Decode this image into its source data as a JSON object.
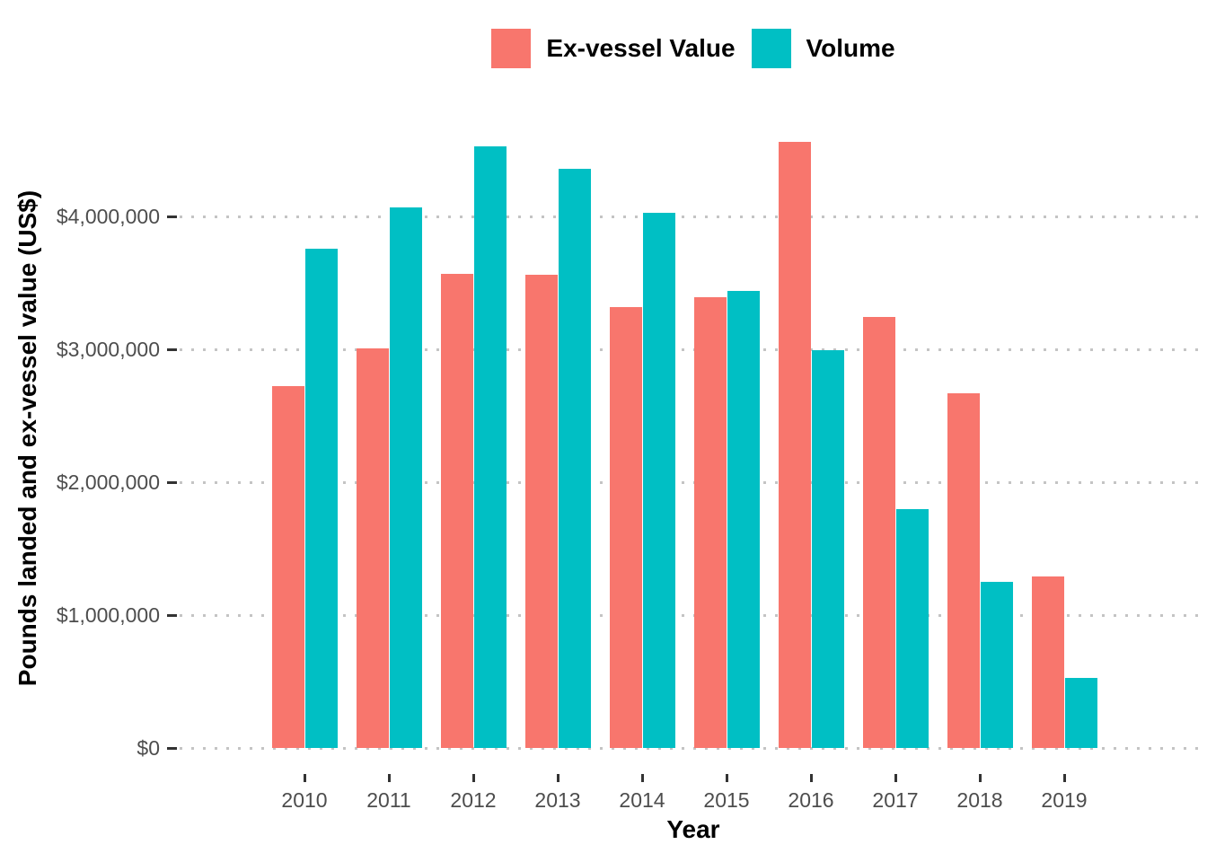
{
  "chart_data": {
    "type": "bar",
    "title": "",
    "xlabel": "Year",
    "ylabel": "Pounds landed and ex-vessel value (US$)",
    "categories": [
      "2010",
      "2011",
      "2012",
      "2013",
      "2014",
      "2015",
      "2016",
      "2017",
      "2018",
      "2019"
    ],
    "series": [
      {
        "name": "Ex-vessel Value",
        "color": "#F8766D",
        "values": [
          2720000,
          3010000,
          3570000,
          3560000,
          3320000,
          3390000,
          4560000,
          3240000,
          2670000,
          1290000
        ]
      },
      {
        "name": "Volume",
        "color": "#00BFC4",
        "values": [
          3760000,
          4070000,
          4530000,
          4360000,
          4030000,
          3440000,
          2990000,
          1800000,
          1250000,
          530000
        ]
      }
    ],
    "ylim": [
      0,
      4790000
    ],
    "yticks": [
      {
        "value": 0,
        "label": "$0"
      },
      {
        "value": 1000000,
        "label": "$1,000,000"
      },
      {
        "value": 2000000,
        "label": "$2,000,000"
      },
      {
        "value": 3000000,
        "label": "$3,000,000"
      },
      {
        "value": 4000000,
        "label": "$4,000,000"
      }
    ],
    "legend_position": "top",
    "grid": "horizontal-dotted-major-only",
    "colors": {
      "background": "#ffffff",
      "gridline": "#c4c4c4",
      "tick_mark": "#333333",
      "axis_text": "#4d4d4d",
      "axis_title": "#000000"
    }
  }
}
